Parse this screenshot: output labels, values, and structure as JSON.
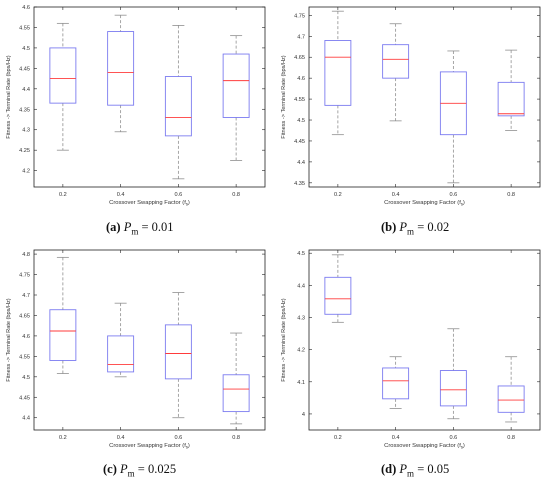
{
  "chart_data": [
    {
      "type": "boxplot",
      "panel_letter": "(a)",
      "caption_param": "P",
      "caption_sub": "m",
      "caption_value": "= 0.01",
      "xlabel": "Crossover Swapping Factor (f",
      "xlabel_sub": "s",
      "xlabel_end": ")",
      "ylabel": "Fitness -> Terminal Rate (bps/Hz)",
      "categories": [
        "0.2",
        "0.4",
        "0.6",
        "0.8"
      ],
      "ylim": [
        4.16,
        4.6
      ],
      "yticks": [
        "4.2",
        "4.25",
        "4.3",
        "4.35",
        "4.4",
        "4.45",
        "4.5",
        "4.55",
        "4.6"
      ],
      "tick_values": [
        4.2,
        4.25,
        4.3,
        4.35,
        4.4,
        4.45,
        4.5,
        4.55,
        4.6
      ],
      "boxes": [
        {
          "min": 4.25,
          "q1": 4.365,
          "median": 4.425,
          "q3": 4.5,
          "max": 4.56
        },
        {
          "min": 4.295,
          "q1": 4.36,
          "median": 4.44,
          "q3": 4.54,
          "max": 4.58
        },
        {
          "min": 4.18,
          "q1": 4.285,
          "median": 4.33,
          "q3": 4.43,
          "max": 4.555
        },
        {
          "min": 4.225,
          "q1": 4.33,
          "median": 4.42,
          "q3": 4.485,
          "max": 4.53
        }
      ]
    },
    {
      "type": "boxplot",
      "panel_letter": "(b)",
      "caption_param": "P",
      "caption_sub": "m",
      "caption_value": "= 0.02",
      "xlabel": "Crossover Swapping Factor (f",
      "xlabel_sub": "s",
      "xlabel_end": ")",
      "ylabel": "Fitness -> Terminal Rate (bps/Hz)",
      "categories": [
        "0.2",
        "0.4",
        "0.6",
        "0.8"
      ],
      "ylim": [
        4.34,
        4.77
      ],
      "yticks": [
        "4.35",
        "4.4",
        "4.45",
        "4.5",
        "4.55",
        "4.6",
        "4.65",
        "4.7",
        "4.75"
      ],
      "tick_values": [
        4.35,
        4.4,
        4.45,
        4.5,
        4.55,
        4.6,
        4.65,
        4.7,
        4.75
      ],
      "boxes": [
        {
          "min": 4.465,
          "q1": 4.535,
          "median": 4.65,
          "q3": 4.69,
          "max": 4.76
        },
        {
          "min": 4.498,
          "q1": 4.6,
          "median": 4.645,
          "q3": 4.68,
          "max": 4.73
        },
        {
          "min": 4.35,
          "q1": 4.465,
          "median": 4.54,
          "q3": 4.615,
          "max": 4.665
        },
        {
          "min": 4.475,
          "q1": 4.51,
          "median": 4.515,
          "q3": 4.59,
          "max": 4.667
        }
      ]
    },
    {
      "type": "boxplot",
      "panel_letter": "(c)",
      "caption_param": "P",
      "caption_sub": "m",
      "caption_value": "= 0.025",
      "xlabel": "Crossover Swapping Factor (f",
      "xlabel_sub": "s",
      "xlabel_end": ")",
      "ylabel": "Fitness -> Terminal Rate (bps/Hz)",
      "categories": [
        "0.2",
        "0.4",
        "0.6",
        "0.8"
      ],
      "ylim": [
        4.37,
        4.81
      ],
      "yticks": [
        "4.4",
        "4.45",
        "4.5",
        "4.55",
        "4.6",
        "4.65",
        "4.7",
        "4.75",
        "4.8"
      ],
      "tick_values": [
        4.4,
        4.45,
        4.5,
        4.55,
        4.6,
        4.65,
        4.7,
        4.75,
        4.8
      ],
      "boxes": [
        {
          "min": 4.508,
          "q1": 4.54,
          "median": 4.612,
          "q3": 4.664,
          "max": 4.792
        },
        {
          "min": 4.5,
          "q1": 4.512,
          "median": 4.53,
          "q3": 4.6,
          "max": 4.68
        },
        {
          "min": 4.4,
          "q1": 4.495,
          "median": 4.557,
          "q3": 4.627,
          "max": 4.706
        },
        {
          "min": 4.385,
          "q1": 4.415,
          "median": 4.47,
          "q3": 4.505,
          "max": 4.607
        }
      ]
    },
    {
      "type": "boxplot",
      "panel_letter": "(d)",
      "caption_param": "P",
      "caption_sub": "m",
      "caption_value": "= 0.05",
      "xlabel": "Crossover Swapping Factor (f",
      "xlabel_sub": "s",
      "xlabel_end": ")",
      "ylabel": "Fitness -> Terminal Rate (bps/Hz)",
      "categories": [
        "0.2",
        "0.4",
        "0.6",
        "0.8"
      ],
      "ylim": [
        3.95,
        4.51
      ],
      "yticks": [
        "4",
        "4.1",
        "4.2",
        "4.3",
        "4.4",
        "4.5"
      ],
      "tick_values": [
        4.0,
        4.1,
        4.2,
        4.3,
        4.4,
        4.5
      ],
      "boxes": [
        {
          "min": 4.285,
          "q1": 4.31,
          "median": 4.358,
          "q3": 4.425,
          "max": 4.495
        },
        {
          "min": 4.017,
          "q1": 4.047,
          "median": 4.103,
          "q3": 4.143,
          "max": 4.178
        },
        {
          "min": 3.985,
          "q1": 4.025,
          "median": 4.075,
          "q3": 4.135,
          "max": 4.265
        },
        {
          "min": 3.975,
          "q1": 4.005,
          "median": 4.043,
          "q3": 4.087,
          "max": 4.178
        }
      ]
    }
  ],
  "colors": {
    "box": "#7b7bf0",
    "median": "#ff3b3b",
    "whisker": "#909090",
    "axis": "#222222",
    "text": "#333333"
  }
}
